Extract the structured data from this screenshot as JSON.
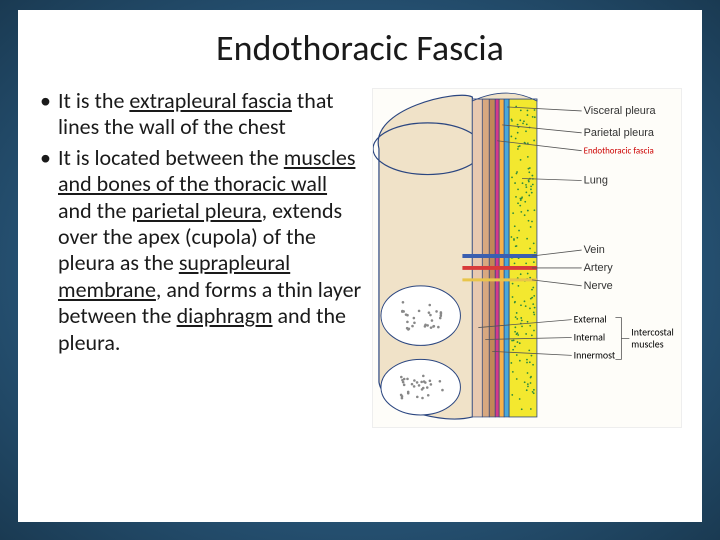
{
  "title": "Endothoracic Fascia",
  "bullets": [
    {
      "segments": [
        {
          "t": "It is the ",
          "u": false
        },
        {
          "t": "extrapleural fascia",
          "u": true
        },
        {
          "t": " that lines the wall of the chest",
          "u": false
        }
      ]
    },
    {
      "segments": [
        {
          "t": "It is located between the ",
          "u": false
        },
        {
          "t": "muscles and bones of the thoracic wall",
          "u": true
        },
        {
          "t": " and the  ",
          "u": false
        },
        {
          "t": "parietal pleura",
          "u": true
        },
        {
          "t": ", extends over the apex (cupola) of the pleura as the ",
          "u": false
        },
        {
          "t": "suprapleural membrane",
          "u": true
        },
        {
          "t": ",  and forms a thin layer between the ",
          "u": false
        },
        {
          "t": "diaphragm",
          "u": true
        },
        {
          "t": " and the pleura.",
          "u": false
        }
      ]
    }
  ],
  "figure": {
    "bg": "#fefdf9",
    "colors": {
      "outline": "#2b4680",
      "skin": "#f0e2c8",
      "lung_fill": "#f3e82f",
      "lung_dots": "#2e8b3d",
      "visceral": "#4aa8d8",
      "parietal": "#f7b24a",
      "etf": "#d43a8a",
      "vein": "#3a5fb0",
      "artery": "#d83a3a",
      "nerve": "#e8c54a",
      "muscle_ext": "#e8c9b0",
      "muscle_int": "#d8a880",
      "muscle_inner": "#c08858",
      "leader": "#555"
    },
    "labels": {
      "visceral": "Visceral pleura",
      "parietal": "Parietal pleura",
      "etf": "Endothoracic fascia",
      "lung": "Lung",
      "vein": "Vein",
      "artery": "Artery",
      "nerve": "Nerve",
      "ext": "External",
      "int": "Internal",
      "inner": "Innermost",
      "intercostal": "Intercostal muscles"
    }
  },
  "style": {
    "title_fontsize": 36,
    "body_fontsize": 22,
    "slide_bg_center": "#4a7ba6",
    "slide_bg_edge": "#1a3a52",
    "content_bg": "#ffffff",
    "text_color": "#1a1a1a"
  }
}
